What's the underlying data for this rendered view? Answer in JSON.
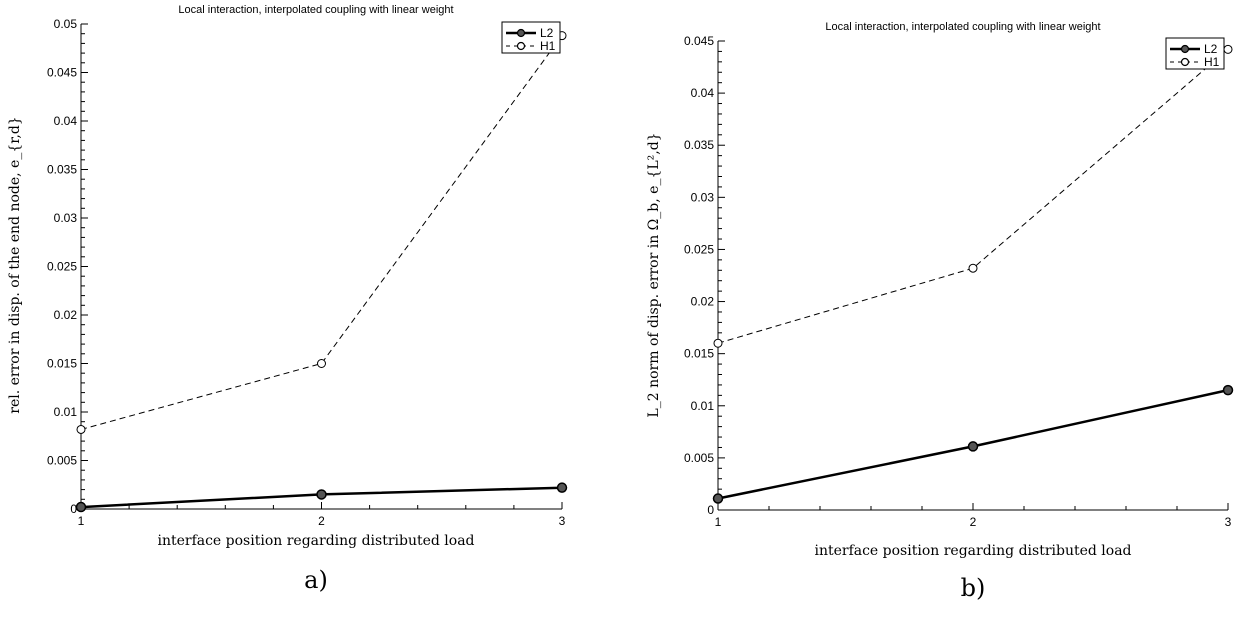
{
  "chart_data": [
    {
      "type": "line",
      "title": "Local interaction, interpolated coupling with linear weight",
      "xlabel": "interface position regarding distributed load",
      "ylabel": "rel. error in disp. of the end node, e_{r,d}",
      "xlim": [
        1,
        3
      ],
      "ylim": [
        0,
        0.05
      ],
      "xticks": [
        "1",
        "2",
        "3"
      ],
      "yticks": [
        "0",
        "0.005",
        "0.01",
        "0.015",
        "0.02",
        "0.025",
        "0.03",
        "0.035",
        "0.04",
        "0.045",
        "0.05"
      ],
      "x": [
        1,
        2,
        3
      ],
      "series": [
        {
          "name": "L2",
          "values": [
            0.0002,
            0.0015,
            0.0022
          ],
          "style": "solid",
          "marker": "filled-circle"
        },
        {
          "name": "H1",
          "values": [
            0.0082,
            0.015,
            0.0488
          ],
          "style": "dashed",
          "marker": "open-circle"
        }
      ],
      "legend": "top-right",
      "grid": false,
      "sublabel": "a)"
    },
    {
      "type": "line",
      "title": "Local interaction, interpolated coupling with linear weight",
      "xlabel": "interface position regarding distributed load",
      "ylabel": "L_2 norm of disp. error in Ω_b, e_{L²,d}",
      "xlim": [
        1,
        3
      ],
      "ylim": [
        0,
        0.045
      ],
      "xticks": [
        "1",
        "2",
        "3"
      ],
      "yticks": [
        "0",
        "0.005",
        "0.01",
        "0.015",
        "0.02",
        "0.025",
        "0.03",
        "0.035",
        "0.04",
        "0.045"
      ],
      "x": [
        1,
        2,
        3
      ],
      "series": [
        {
          "name": "L2",
          "values": [
            0.0011,
            0.0061,
            0.0115
          ],
          "style": "solid",
          "marker": "filled-circle"
        },
        {
          "name": "H1",
          "values": [
            0.016,
            0.0232,
            0.0442
          ],
          "style": "dashed",
          "marker": "open-circle"
        }
      ],
      "legend": "top-right",
      "grid": false,
      "sublabel": "b)"
    }
  ]
}
